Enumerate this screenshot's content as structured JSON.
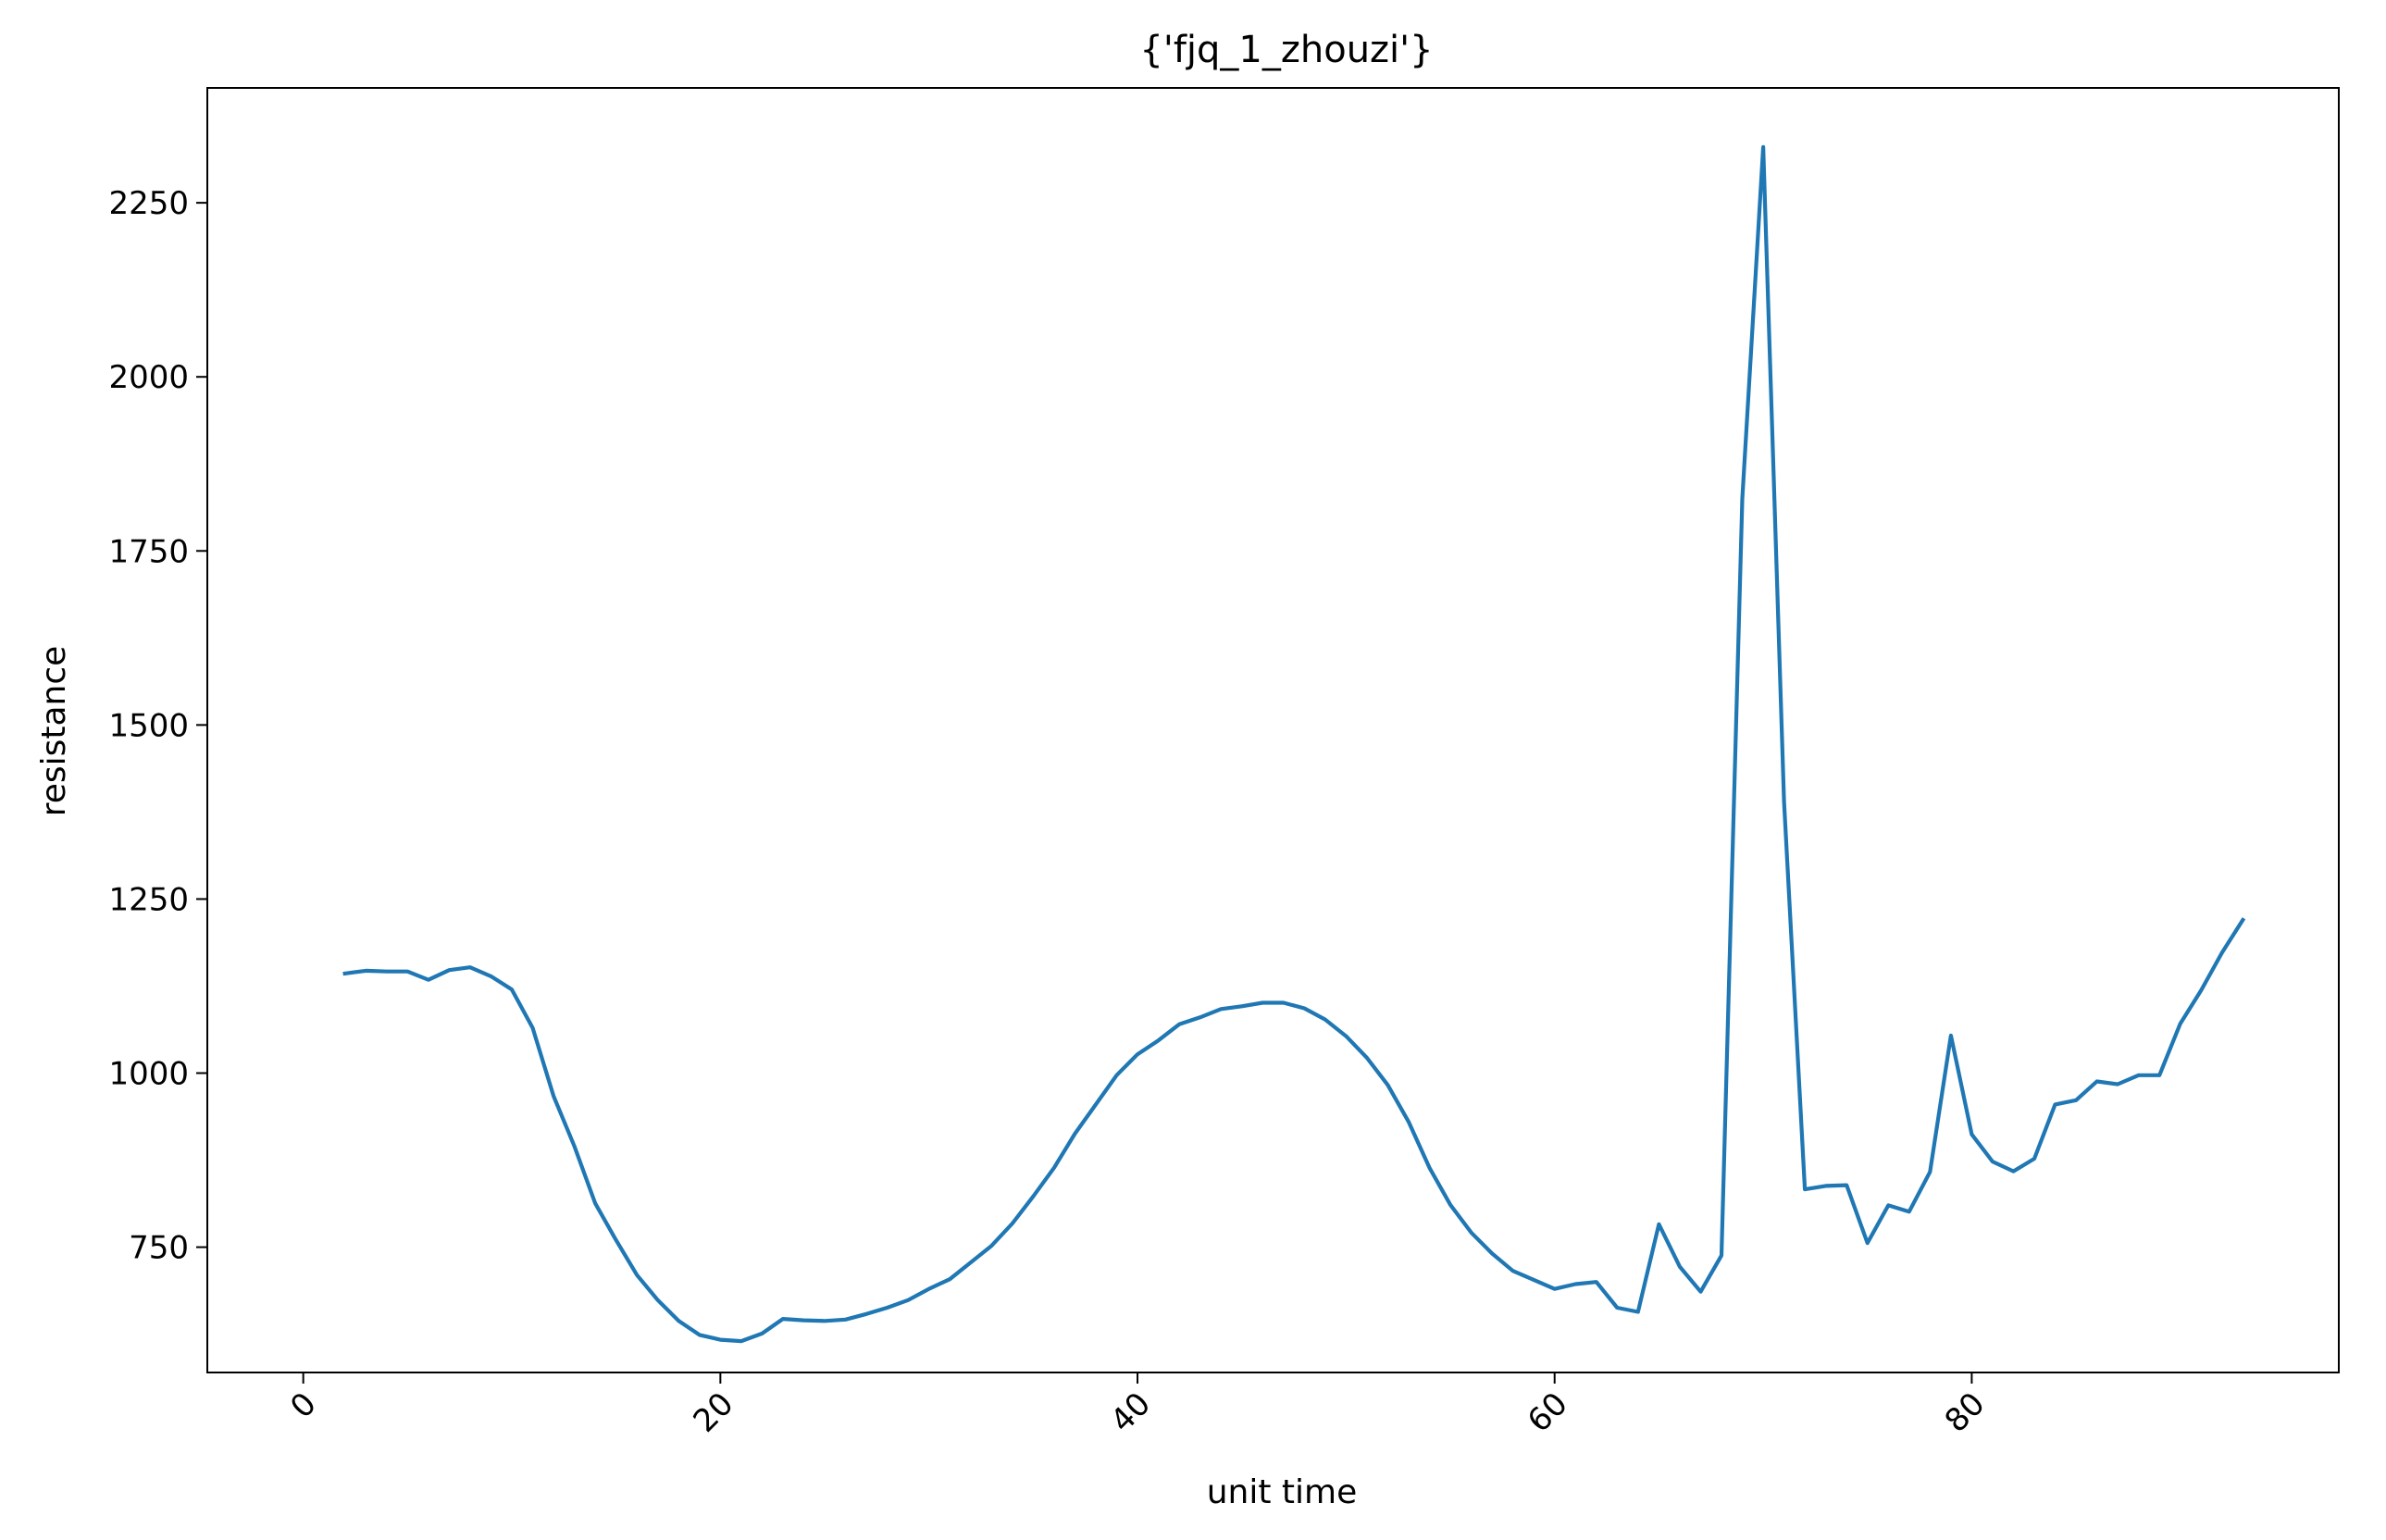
{
  "chart_data": {
    "type": "line",
    "title": "{'fjq_1_zhouzi'}",
    "xlabel": "unit time",
    "ylabel": "resistance",
    "xlim": [
      -4.6,
      97.6
    ],
    "ylim": [
      570,
      2415
    ],
    "xticks": [
      0,
      20,
      40,
      60,
      80
    ],
    "xtick_labels": [
      "0",
      "20",
      "40",
      "60",
      "80"
    ],
    "xtick_rotation": 45,
    "yticks": [
      750,
      1000,
      1250,
      1500,
      1750,
      2000,
      2250
    ],
    "ytick_labels": [
      "750",
      "1000",
      "1250",
      "1500",
      "1750",
      "2000",
      "2250"
    ],
    "grid": false,
    "line_color": "#1f77b4",
    "series": [
      {
        "x": [
          2,
          3,
          4,
          5,
          6,
          7,
          8,
          9,
          10,
          11,
          12,
          13,
          14,
          15,
          16,
          17,
          18,
          19,
          20,
          21,
          22,
          23,
          24,
          25,
          26,
          27,
          28,
          29,
          30,
          31,
          32,
          33,
          34,
          35,
          36,
          37,
          38,
          39,
          40,
          41,
          42,
          43,
          44,
          45,
          46,
          47,
          48,
          49,
          50,
          51,
          52,
          53,
          54,
          55,
          56,
          57,
          58,
          59,
          60,
          61,
          62,
          63,
          64,
          65,
          66,
          67,
          68,
          69,
          70,
          71,
          72,
          73,
          74,
          75,
          76,
          77,
          78,
          79,
          80,
          81,
          82,
          83,
          84,
          85,
          86,
          87,
          88,
          89,
          90,
          91,
          92,
          93
        ],
        "values": [
          1143,
          1147,
          1146,
          1146,
          1134,
          1148,
          1152,
          1139,
          1120,
          1065,
          967,
          895,
          813,
          760,
          710,
          674,
          644,
          624,
          617,
          615,
          626,
          647,
          645,
          644,
          646,
          654,
          663,
          674,
          690,
          704,
          728,
          752,
          784,
          823,
          864,
          913,
          955,
          997,
          1027,
          1047,
          1070,
          1080,
          1092,
          1096,
          1101,
          1101,
          1093,
          1077,
          1053,
          1022,
          983,
          930,
          864,
          811,
          771,
          741,
          716,
          703,
          690,
          697,
          700,
          663,
          657,
          783,
          722,
          686,
          738,
          1825,
          2330,
          1390,
          833,
          838,
          839,
          756,
          810,
          801,
          858,
          1054,
          912,
          873,
          859,
          877,
          955,
          961,
          988,
          984,
          997,
          997,
          1071,
          1119,
          1173,
          1220
        ]
      }
    ]
  }
}
